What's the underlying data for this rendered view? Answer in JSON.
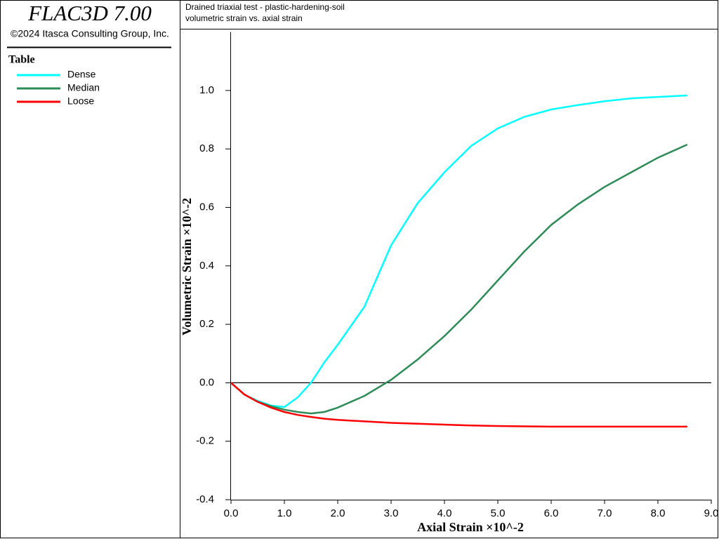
{
  "app_title": "FLAC3D 7.00",
  "copyright": "©2024 Itasca Consulting Group, Inc.",
  "legend_heading": "Table",
  "chart_data": {
    "type": "line",
    "title": "Drained triaxial test - plastic-hardening-soil",
    "subtitle": "volumetric strain vs. axial strain",
    "x_label": "Axial Strain ×10^-2",
    "y_label": "Volumetric Strain ×10^-2",
    "x": [
      0,
      0.25,
      0.5,
      0.75,
      1.0,
      1.25,
      1.5,
      1.75,
      2.0,
      2.5,
      3.0,
      3.5,
      4.0,
      4.5,
      5.0,
      5.5,
      6.0,
      6.5,
      7.0,
      7.5,
      8.0,
      8.55
    ],
    "series": [
      {
        "name": "Dense",
        "color": "#00ffff",
        "values": [
          0,
          -0.04,
          -0.062,
          -0.078,
          -0.083,
          -0.05,
          0.0,
          0.07,
          0.13,
          0.26,
          0.47,
          0.615,
          0.72,
          0.81,
          0.87,
          0.91,
          0.935,
          0.95,
          0.963,
          0.973,
          0.978,
          0.983
        ]
      },
      {
        "name": "Median",
        "color": "#2e8b57",
        "values": [
          0,
          -0.04,
          -0.065,
          -0.08,
          -0.092,
          -0.1,
          -0.105,
          -0.1,
          -0.085,
          -0.045,
          0.01,
          0.08,
          0.16,
          0.25,
          0.35,
          0.45,
          0.54,
          0.61,
          0.67,
          0.72,
          0.77,
          0.815
        ]
      },
      {
        "name": "Loose",
        "color": "#ff0000",
        "values": [
          0,
          -0.04,
          -0.065,
          -0.085,
          -0.1,
          -0.11,
          -0.117,
          -0.123,
          -0.127,
          -0.132,
          -0.137,
          -0.14,
          -0.143,
          -0.146,
          -0.148,
          -0.149,
          -0.15,
          -0.15,
          -0.15,
          -0.15,
          -0.15,
          -0.15
        ]
      }
    ],
    "xlim": [
      0,
      9
    ],
    "xticks": [
      {
        "value": 0,
        "label": "0.0"
      },
      {
        "value": 1,
        "label": "1.0"
      },
      {
        "value": 2,
        "label": "2.0"
      },
      {
        "value": 3,
        "label": "3.0"
      },
      {
        "value": 4,
        "label": "4.0"
      },
      {
        "value": 5,
        "label": "5.0"
      },
      {
        "value": 6,
        "label": "6.0"
      },
      {
        "value": 7,
        "label": "7.0"
      },
      {
        "value": 8,
        "label": "8.0"
      },
      {
        "value": 9,
        "label": "9.0"
      }
    ],
    "ylim": [
      -0.4,
      1.2
    ],
    "yticks": [
      -0.4,
      -0.2,
      {
        "value": 0,
        "label": "0.0"
      },
      0.2,
      0.4,
      0.6,
      0.8,
      {
        "value": 1,
        "label": "1.0"
      }
    ],
    "zero_line": true
  }
}
